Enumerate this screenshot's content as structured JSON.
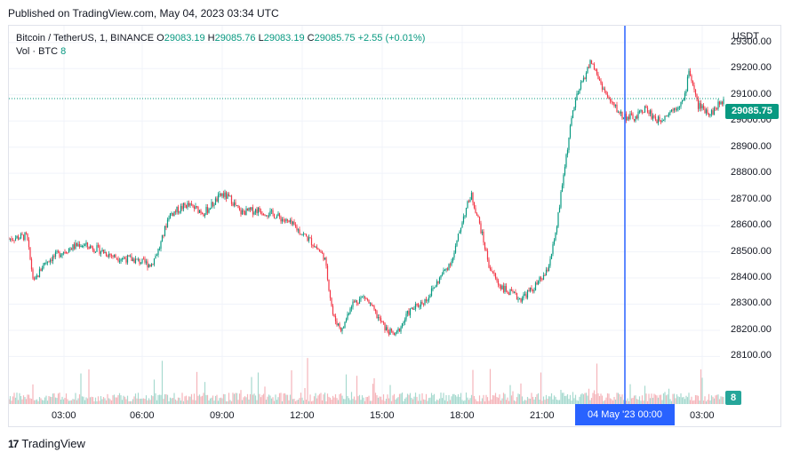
{
  "header": {
    "published": "Published on TradingView.com, May 04, 2023 03:34 UTC"
  },
  "legend": {
    "symbol": "Bitcoin / TetherUS, 1, BINANCE",
    "o_label": "O",
    "o_value": "29083.19",
    "h_label": "H",
    "h_value": "29085.76",
    "l_label": "L",
    "l_value": "29083.19",
    "c_label": "C",
    "c_value": "29085.75",
    "change": "+2.55 (+0.01%)",
    "vol_label": "Vol · BTC",
    "vol_value": "8"
  },
  "price_axis": {
    "currency": "USDT",
    "ticks": [
      "29300.00",
      "29200.00",
      "29100.00",
      "29000.00",
      "28900.00",
      "28800.00",
      "28700.00",
      "28600.00",
      "28500.00",
      "28400.00",
      "28300.00",
      "28200.00",
      "28100.00"
    ],
    "last_price_label": "29085.75",
    "volume_label": "8"
  },
  "time_axis": {
    "ticks": [
      "03:00",
      "06:00",
      "09:00",
      "12:00",
      "15:00",
      "18:00",
      "21:00",
      "03:00"
    ],
    "crosshair_label": "04 May '23   00:00"
  },
  "footer": {
    "brand": "TradingView",
    "logo_text": "17"
  },
  "colors": {
    "up": "#089981",
    "down": "#f23645",
    "crosshair": "#2962ff",
    "grid": "#f0f3fa"
  },
  "chart_data": {
    "type": "candlestick",
    "title": "Bitcoin / TetherUS, 1, BINANCE",
    "y_range": [
      28020,
      29330
    ],
    "last_price": 29085.75,
    "x_ticks": [
      "03:00",
      "06:00",
      "09:00",
      "12:00",
      "15:00",
      "18:00",
      "21:00",
      "00:00",
      "03:00"
    ],
    "close_path": [
      [
        0,
        28550
      ],
      [
        20,
        28560
      ],
      [
        28,
        28380
      ],
      [
        40,
        28460
      ],
      [
        60,
        28500
      ],
      [
        80,
        28530
      ],
      [
        100,
        28510
      ],
      [
        120,
        28480
      ],
      [
        140,
        28470
      ],
      [
        160,
        28450
      ],
      [
        170,
        28520
      ],
      [
        180,
        28640
      ],
      [
        200,
        28680
      ],
      [
        220,
        28650
      ],
      [
        240,
        28720
      ],
      [
        250,
        28700
      ],
      [
        260,
        28650
      ],
      [
        280,
        28660
      ],
      [
        300,
        28640
      ],
      [
        320,
        28600
      ],
      [
        340,
        28540
      ],
      [
        355,
        28480
      ],
      [
        365,
        28250
      ],
      [
        375,
        28200
      ],
      [
        385,
        28300
      ],
      [
        400,
        28330
      ],
      [
        415,
        28250
      ],
      [
        425,
        28200
      ],
      [
        435,
        28180
      ],
      [
        450,
        28270
      ],
      [
        470,
        28320
      ],
      [
        485,
        28400
      ],
      [
        500,
        28480
      ],
      [
        510,
        28620
      ],
      [
        520,
        28720
      ],
      [
        530,
        28600
      ],
      [
        540,
        28450
      ],
      [
        550,
        28380
      ],
      [
        560,
        28350
      ],
      [
        575,
        28320
      ],
      [
        590,
        28360
      ],
      [
        605,
        28420
      ],
      [
        615,
        28560
      ],
      [
        625,
        28820
      ],
      [
        635,
        29050
      ],
      [
        645,
        29150
      ],
      [
        655,
        29230
      ],
      [
        665,
        29150
      ],
      [
        675,
        29080
      ],
      [
        690,
        29020
      ],
      [
        705,
        29010
      ],
      [
        715,
        29050
      ],
      [
        730,
        29000
      ],
      [
        745,
        29040
      ],
      [
        760,
        29080
      ],
      [
        765,
        29200
      ],
      [
        775,
        29060
      ],
      [
        790,
        29030
      ],
      [
        805,
        29085.75
      ]
    ],
    "crosshair_x": "04 May '23 00:00"
  }
}
